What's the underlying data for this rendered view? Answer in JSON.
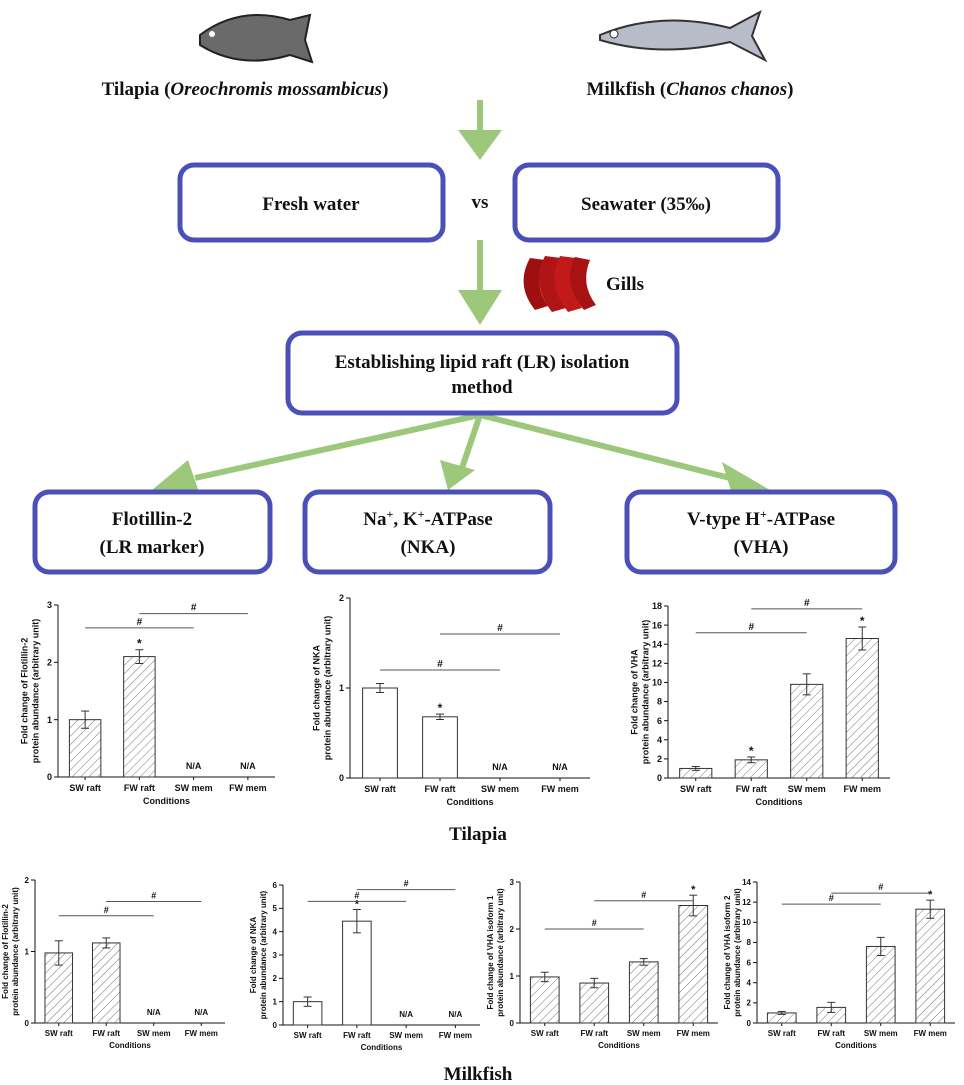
{
  "diagram": {
    "tilapia_name": [
      "Tilapia (",
      "Oreochromis mossambicus",
      ")"
    ],
    "milkfish_name": [
      "Milkfish (",
      "Chanos chanos",
      ")"
    ],
    "fresh_water": "Fresh water",
    "vs": "vs",
    "seawater": "Seawater (35‰)",
    "gills": "Gills",
    "lr_method": [
      "Establishing lipid raft (LR) isolation",
      "method"
    ],
    "flotillin": [
      "Flotillin-2",
      "(LR marker)"
    ],
    "nka": {
      "line1": [
        "Na",
        "+",
        ", K",
        "+",
        "-ATPase"
      ],
      "line2": "(NKA)"
    },
    "vha": {
      "line1": [
        "V-type H",
        "+",
        "-ATPase"
      ],
      "line2": "(VHA)"
    },
    "group_tilapia": "Tilapia",
    "group_milkfish": "Milkfish"
  },
  "chart_data": [
    {
      "type": "bar",
      "hatch": true,
      "categories": [
        "SW raft",
        "FW raft",
        "SW mem",
        "FW mem"
      ],
      "values": [
        1.0,
        2.1,
        null,
        null
      ],
      "errors": [
        0.15,
        0.12,
        null,
        null
      ],
      "value_labels": [
        null,
        null,
        "N/A",
        "N/A"
      ],
      "markers": [
        null,
        "*",
        null,
        null
      ],
      "brackets": [
        {
          "between": [
            0,
            2
          ],
          "y": 2.6,
          "label": "#"
        },
        {
          "between": [
            1,
            3
          ],
          "y": 2.85,
          "label": "#"
        }
      ],
      "ylim": [
        0,
        3
      ],
      "yticks": [
        0,
        1,
        2,
        3
      ],
      "ylabel": [
        "Fold change of Flotillin-2",
        "protein abundance (arbitrary unit)"
      ],
      "xlabel": "Conditions"
    },
    {
      "type": "bar",
      "hatch": false,
      "categories": [
        "SW raft",
        "FW raft",
        "SW mem",
        "FW mem"
      ],
      "values": [
        1.0,
        0.68,
        null,
        null
      ],
      "errors": [
        0.05,
        0.03,
        null,
        null
      ],
      "value_labels": [
        null,
        null,
        "N/A",
        "N/A"
      ],
      "markers": [
        null,
        "*",
        null,
        null
      ],
      "brackets": [
        {
          "between": [
            0,
            2
          ],
          "y": 1.2,
          "label": "#"
        },
        {
          "between": [
            1,
            3
          ],
          "y": 1.6,
          "label": "#"
        }
      ],
      "ylim": [
        0,
        2
      ],
      "yticks": [
        0,
        1,
        2
      ],
      "ylabel": [
        "Fold change of NKA",
        "protein abundance (arbitrary unit)"
      ],
      "xlabel": "Conditions"
    },
    {
      "type": "bar",
      "hatch": true,
      "categories": [
        "SW raft",
        "FW raft",
        "SW mem",
        "FW mem"
      ],
      "values": [
        1.0,
        1.9,
        9.8,
        14.6
      ],
      "errors": [
        0.2,
        0.3,
        1.1,
        1.2
      ],
      "value_labels": [
        null,
        null,
        null,
        null
      ],
      "markers": [
        null,
        "*",
        null,
        "*"
      ],
      "brackets": [
        {
          "between": [
            0,
            2
          ],
          "y": 15.2,
          "label": "#"
        },
        {
          "between": [
            1,
            3
          ],
          "y": 17.7,
          "label": "#"
        }
      ],
      "ylim": [
        0,
        18
      ],
      "yticks": [
        0,
        2,
        4,
        6,
        8,
        10,
        12,
        14,
        16,
        18
      ],
      "ylabel": [
        "Fold change of VHA",
        "protein abundance (arbitrary unit)"
      ],
      "xlabel": "Conditions"
    },
    {
      "type": "bar",
      "hatch": true,
      "categories": [
        "SW raft",
        "FW raft",
        "SW mem",
        "FW mem"
      ],
      "values": [
        0.98,
        1.12,
        null,
        null
      ],
      "errors": [
        0.17,
        0.07,
        null,
        null
      ],
      "value_labels": [
        null,
        null,
        "N/A",
        "N/A"
      ],
      "markers": [
        null,
        null,
        null,
        null
      ],
      "brackets": [
        {
          "between": [
            0,
            2
          ],
          "y": 1.5,
          "label": "#"
        },
        {
          "between": [
            1,
            3
          ],
          "y": 1.7,
          "label": "#"
        }
      ],
      "ylim": [
        0,
        2
      ],
      "yticks": [
        0,
        1,
        2
      ],
      "ylabel": [
        "Fold change of Flotillin-2",
        "protein abundance (arbitrary unit)"
      ],
      "xlabel": "Conditions"
    },
    {
      "type": "bar",
      "hatch": false,
      "categories": [
        "SW raft",
        "FW raft",
        "SW mem",
        "FW mem"
      ],
      "values": [
        1.0,
        4.45,
        null,
        null
      ],
      "errors": [
        0.2,
        0.5,
        null,
        null
      ],
      "value_labels": [
        null,
        null,
        "N/A",
        "N/A"
      ],
      "markers": [
        null,
        "*",
        null,
        null
      ],
      "brackets": [
        {
          "between": [
            0,
            2
          ],
          "y": 5.3,
          "label": "#"
        },
        {
          "between": [
            1,
            3
          ],
          "y": 5.8,
          "label": "#"
        }
      ],
      "ylim": [
        0,
        6
      ],
      "yticks": [
        0,
        1,
        2,
        3,
        4,
        5,
        6
      ],
      "ylabel": [
        "Fold change of NKA",
        "protein abundance (arbitrary unit)"
      ],
      "xlabel": "Conditions"
    },
    {
      "type": "bar",
      "hatch": true,
      "categories": [
        "SW raft",
        "FW raft",
        "SW mem",
        "FW mem"
      ],
      "values": [
        0.98,
        0.85,
        1.3,
        2.5
      ],
      "errors": [
        0.1,
        0.1,
        0.07,
        0.22
      ],
      "value_labels": [
        null,
        null,
        null,
        null
      ],
      "markers": [
        null,
        null,
        null,
        "*"
      ],
      "brackets": [
        {
          "between": [
            0,
            2
          ],
          "y": 2.0,
          "label": "#"
        },
        {
          "between": [
            1,
            3
          ],
          "y": 2.6,
          "label": "#"
        }
      ],
      "ylim": [
        0,
        3
      ],
      "yticks": [
        0,
        1,
        2,
        3
      ],
      "ylabel": [
        "Fold change of VHA isoform 1",
        "protein abundance (arbitrary unit)"
      ],
      "xlabel": "Conditions"
    },
    {
      "type": "bar",
      "hatch": true,
      "categories": [
        "SW raft",
        "FW raft",
        "SW mem",
        "FW mem"
      ],
      "values": [
        1.0,
        1.55,
        7.6,
        11.3
      ],
      "errors": [
        0.15,
        0.5,
        0.9,
        0.9
      ],
      "value_labels": [
        null,
        null,
        null,
        null
      ],
      "markers": [
        null,
        null,
        null,
        "*"
      ],
      "brackets": [
        {
          "between": [
            0,
            2
          ],
          "y": 11.8,
          "label": "#"
        },
        {
          "between": [
            1,
            3
          ],
          "y": 12.9,
          "label": "#"
        }
      ],
      "ylim": [
        0,
        14
      ],
      "yticks": [
        0,
        2,
        4,
        6,
        8,
        10,
        12,
        14
      ],
      "ylabel": [
        "Fold change of VHA isoform 2",
        "protein abundance (arbitrary unit)"
      ],
      "xlabel": "Conditions"
    }
  ]
}
